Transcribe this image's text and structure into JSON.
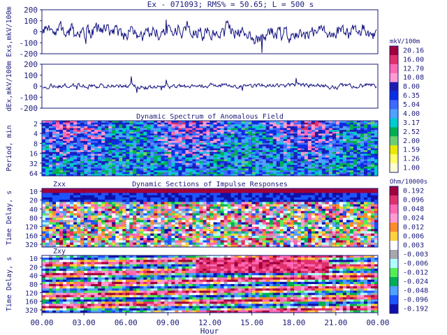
{
  "header": "Ex - 071093;  RMS% = 50.65;  L = 500 s",
  "chart_data": [
    {
      "type": "line",
      "ylabel": "Exs,mkV/100m",
      "ylim": [
        -200,
        200
      ],
      "yticks": [
        "200",
        "100",
        "0",
        "-100",
        "-200"
      ],
      "series": [
        {
          "seed": 7,
          "amp": 45
        }
      ]
    },
    {
      "type": "line",
      "ylabel": "dEx,mkV/100m",
      "ylim": [
        -200,
        200
      ],
      "yticks": [
        "200",
        "100",
        "0",
        "-100",
        "-200"
      ],
      "series": [
        {
          "seed": 19,
          "amp": 14
        }
      ]
    },
    {
      "type": "heatmap",
      "title": "Dynamic Spectrum of Anomalous Field",
      "ylabel": "Period, min",
      "yticks": [
        "2",
        "4",
        "8",
        "16",
        "32",
        "64"
      ],
      "colorbar": {
        "unit": "mkV/100m",
        "labels": [
          "20.16",
          "16.00",
          "12.70",
          "10.08",
          "8.00",
          "6.35",
          "5.04",
          "4.00",
          "3.17",
          "2.52",
          "2.00",
          "1.59",
          "1.26",
          "1.00"
        ],
        "colors": [
          "#a0003c",
          "#e0306a",
          "#ff69b4",
          "#ff9bd0",
          "#1c1cb0",
          "#0a2ee6",
          "#3c6aff",
          "#4fa2ff",
          "#00cccc",
          "#00b050",
          "#6ad06a",
          "#e8e800",
          "#ffff66",
          "#ffffd0"
        ]
      }
    },
    {
      "type": "heatmap",
      "title": "Dynamic Sections of Impulse Responses",
      "panel_label": "Zxx",
      "ylabel": "Time Delay, s",
      "yticks": [
        "10",
        "20",
        "40",
        "80",
        "120",
        "160",
        "320"
      ]
    },
    {
      "type": "heatmap",
      "panel_label": "Zxy",
      "ylabel": "Time Delay, s",
      "yticks": [
        "10",
        "20",
        "40",
        "80",
        "120",
        "160",
        "320"
      ],
      "colorbar": {
        "unit": "Ohm/10000s",
        "labels": [
          "0.192",
          "0.096",
          "0.048",
          "0.024",
          "0.012",
          "0.006",
          "0.003",
          "-0.003",
          "-0.006",
          "-0.012",
          "-0.024",
          "-0.048",
          "-0.096",
          "-0.192"
        ],
        "colors": [
          "#a0003c",
          "#e0306a",
          "#ff69b4",
          "#ff9bd0",
          "#ff8c28",
          "#ffd23c",
          "#ffffff",
          "#a8a8a8",
          "#b0ffff",
          "#55ee55",
          "#00b050",
          "#4fa2ff",
          "#1c54ff",
          "#1010a8"
        ]
      }
    }
  ],
  "xaxis": {
    "ticks": [
      "00.00",
      "03.00",
      "06.00",
      "09.00",
      "12.00",
      "15.00",
      "18.00",
      "21.00",
      "00.00"
    ],
    "label": "Hour"
  }
}
